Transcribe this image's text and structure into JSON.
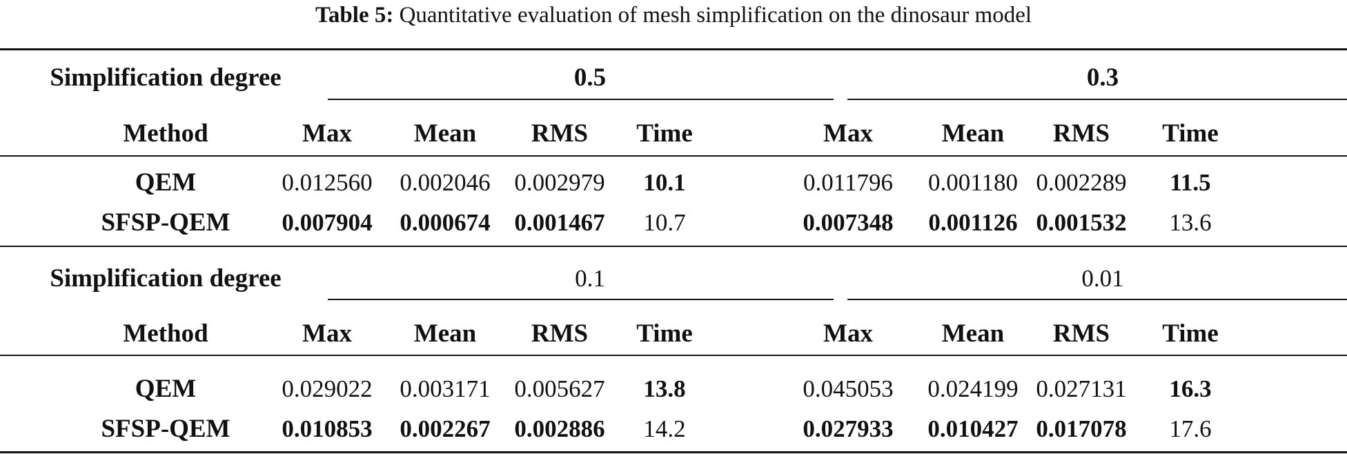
{
  "caption": {
    "label": "Table 5:",
    "text": " Quantitative evaluation of mesh simplification on the dinosaur model"
  },
  "blocks": [
    {
      "degree_label": "Simplification degree",
      "degrees": [
        "0.5",
        "0.3"
      ],
      "degrees_bold": true,
      "method_label": "Method",
      "columns": [
        "Max",
        "Mean",
        "RMS",
        "Time",
        "Max",
        "Mean",
        "RMS",
        "Time"
      ],
      "rows": [
        {
          "method": "QEM",
          "values": [
            "0.012560",
            "0.002046",
            "0.002979",
            "10.1",
            "0.011796",
            "0.001180",
            "0.002289",
            "11.5"
          ],
          "bold": [
            false,
            false,
            false,
            true,
            false,
            false,
            false,
            true
          ]
        },
        {
          "method": "SFSP-QEM",
          "values": [
            "0.007904",
            "0.000674",
            "0.001467",
            "10.7",
            "0.007348",
            "0.001126",
            "0.001532",
            "13.6"
          ],
          "bold": [
            true,
            true,
            true,
            false,
            true,
            true,
            true,
            false
          ]
        }
      ]
    },
    {
      "degree_label": "Simplification degree",
      "degrees": [
        "0.1",
        "0.01"
      ],
      "degrees_bold": false,
      "method_label": "Method",
      "columns": [
        "Max",
        "Mean",
        "RMS",
        "Time",
        "Max",
        "Mean",
        "RMS",
        "Time"
      ],
      "rows": [
        {
          "method": "QEM",
          "values": [
            "0.029022",
            "0.003171",
            "0.005627",
            "13.8",
            "0.045053",
            "0.024199",
            "0.027131",
            "16.3"
          ],
          "bold": [
            false,
            false,
            false,
            true,
            false,
            false,
            false,
            true
          ]
        },
        {
          "method": "SFSP-QEM",
          "values": [
            "0.010853",
            "0.002267",
            "0.002886",
            "14.2",
            "0.027933",
            "0.010427",
            "0.017078",
            "17.6"
          ],
          "bold": [
            true,
            true,
            true,
            false,
            true,
            true,
            true,
            false
          ]
        }
      ]
    }
  ]
}
